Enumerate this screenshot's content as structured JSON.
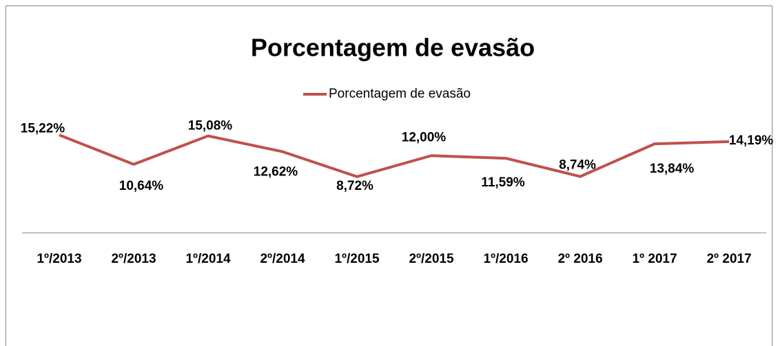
{
  "chart_data": {
    "type": "line",
    "title": "Porcentagem de evasão",
    "categories": [
      "1º/2013",
      "2º/2013",
      "1º/2014",
      "2º/2014",
      "1º/2015",
      "2º/2015",
      "1º/2016",
      "2º 2016",
      "1º 2017",
      "2º 2017"
    ],
    "series": [
      {
        "name": "Porcentagem de evasão",
        "color": "#c0504d",
        "values": [
          15.22,
          10.64,
          15.08,
          12.62,
          8.72,
          12.0,
          11.59,
          8.74,
          13.84,
          14.19
        ],
        "value_labels": [
          "15,22%",
          "10,64%",
          "15,08%",
          "12,62%",
          "8,72%",
          "12,00%",
          "11,59%",
          "8,74%",
          "13,84%",
          "14,19%"
        ]
      }
    ],
    "ylim": [
      0,
      16
    ],
    "legend": "top"
  }
}
